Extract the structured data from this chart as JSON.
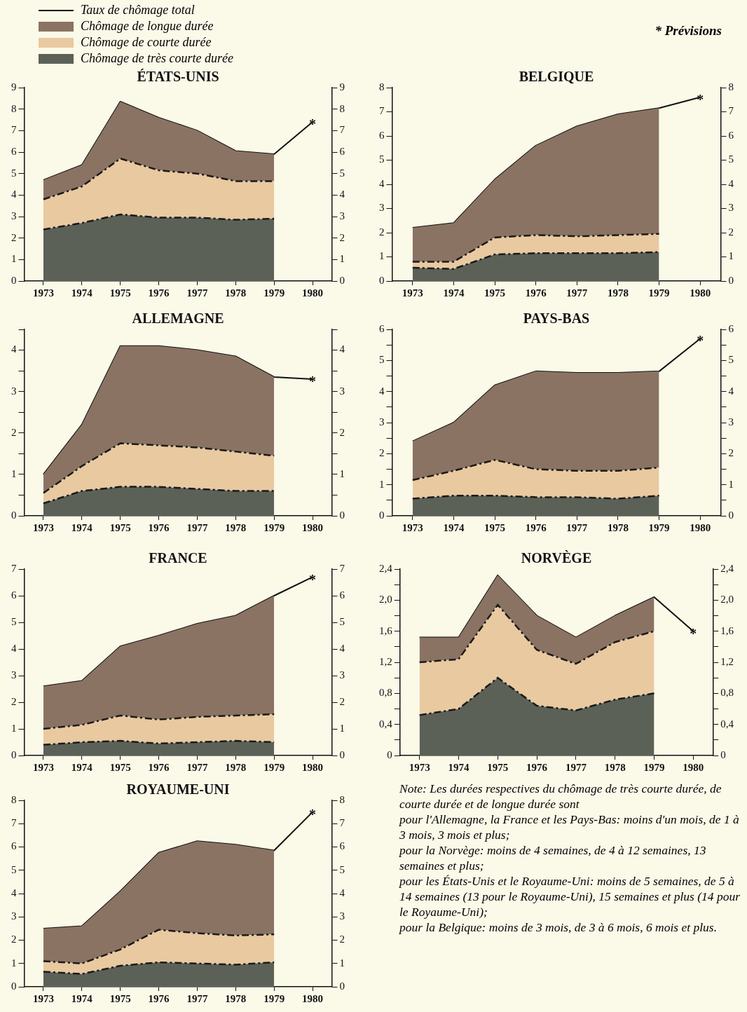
{
  "chart_data": [
    {
      "type": "area",
      "title": "ÉTATS-UNIS",
      "categories": [
        "1973",
        "1974",
        "1975",
        "1976",
        "1977",
        "1978",
        "1979",
        "1980"
      ],
      "stacked": true,
      "legend": "top left",
      "grid": false,
      "ylim": [
        0,
        9
      ],
      "yticks": [
        0,
        1,
        2,
        3,
        4,
        5,
        6,
        7,
        8,
        9
      ],
      "y2lim": [
        0,
        9
      ],
      "y2ticks": [
        0,
        1,
        2,
        3,
        4,
        5,
        6,
        7,
        8,
        9
      ],
      "series": [
        {
          "name": "Chômage de très courte durée",
          "type": "area",
          "color": "#5c6158",
          "line_style": "dashed",
          "values": [
            2.4,
            2.7,
            3.1,
            2.95,
            2.95,
            2.85,
            2.9,
            null
          ]
        },
        {
          "name": "Chômage de courte durée",
          "type": "area",
          "color": "#e9c9a0",
          "line_style": "dashed",
          "values": [
            1.4,
            1.7,
            2.6,
            2.2,
            2.05,
            1.8,
            1.75,
            null
          ]
        },
        {
          "name": "Chômage de longue durée",
          "type": "area",
          "color": "#8a7363",
          "values": [
            0.9,
            1.0,
            2.65,
            2.45,
            2.0,
            1.4,
            1.25,
            null
          ]
        },
        {
          "name": "Taux de chômage total",
          "type": "line",
          "color": "#111111",
          "marker": "none",
          "values": [
            4.7,
            5.4,
            8.35,
            7.6,
            7.0,
            6.05,
            5.9,
            7.4
          ]
        }
      ],
      "annotations": [
        {
          "text": "*",
          "x": "1980",
          "y": 7.4
        }
      ]
    },
    {
      "type": "area",
      "title": "BELGIQUE",
      "categories": [
        "1973",
        "1974",
        "1975",
        "1976",
        "1977",
        "1978",
        "1979",
        "1980"
      ],
      "stacked": true,
      "grid": false,
      "ylim": [
        0,
        8
      ],
      "yticks": [
        0,
        1,
        2,
        3,
        4,
        5,
        6,
        7,
        8
      ],
      "y2lim": [
        0,
        8
      ],
      "y2ticks": [
        0,
        1,
        2,
        3,
        4,
        5,
        6,
        7,
        8
      ],
      "series": [
        {
          "type": "area",
          "color": "#5c6158",
          "line_style": "dashed",
          "values": [
            0.55,
            0.5,
            1.1,
            1.15,
            1.15,
            1.15,
            1.2,
            null
          ]
        },
        {
          "type": "area",
          "color": "#e9c9a0",
          "line_style": "dashed",
          "values": [
            0.25,
            0.3,
            0.7,
            0.75,
            0.7,
            0.75,
            0.75,
            null
          ]
        },
        {
          "type": "area",
          "color": "#8a7363",
          "values": [
            1.4,
            1.6,
            2.4,
            3.7,
            4.55,
            5.0,
            5.2,
            null
          ]
        },
        {
          "type": "line",
          "color": "#111111",
          "marker": "none",
          "values": [
            2.2,
            2.4,
            4.2,
            5.6,
            6.4,
            6.9,
            7.15,
            7.6
          ]
        }
      ],
      "annotations": [
        "* Prévisions",
        {
          "text": "*",
          "x": "1980",
          "y": 7.6
        }
      ]
    },
    {
      "type": "area",
      "title": "ALLEMAGNE",
      "categories": [
        "1973",
        "1974",
        "1975",
        "1976",
        "1977",
        "1978",
        "1979",
        "1980"
      ],
      "stacked": true,
      "grid": false,
      "ylim": [
        0,
        4.5
      ],
      "yticks": [
        0,
        {
          "value": 0.5,
          "label": null
        },
        1,
        {
          "value": 1.5,
          "label": null
        },
        2,
        {
          "value": 2.5,
          "label": null
        },
        3,
        {
          "value": 3.5,
          "label": null
        },
        4,
        {
          "value": 4.5,
          "label": null
        }
      ],
      "y2lim": [
        0,
        4.5
      ],
      "y2ticks": [
        0,
        {
          "value": 0.5,
          "label": null
        },
        1,
        {
          "value": 1.5,
          "label": null
        },
        2,
        {
          "value": 2.5,
          "label": null
        },
        3,
        {
          "value": 3.5,
          "label": null
        },
        4,
        {
          "value": 4.5,
          "label": null
        }
      ],
      "series": [
        {
          "type": "area",
          "color": "#5c6158",
          "line_style": "dashed",
          "values": [
            0.3,
            0.6,
            0.7,
            0.7,
            0.65,
            0.6,
            0.6,
            null
          ]
        },
        {
          "type": "area",
          "color": "#e9c9a0",
          "line_style": "dashed",
          "values": [
            0.25,
            0.6,
            1.05,
            1.0,
            1.0,
            0.95,
            0.85,
            null
          ]
        },
        {
          "type": "area",
          "color": "#8a7363",
          "values": [
            0.45,
            1.0,
            2.35,
            2.4,
            2.35,
            2.3,
            1.9,
            null
          ]
        },
        {
          "type": "line",
          "color": "#111111",
          "marker": "none",
          "values": [
            1.0,
            2.2,
            4.1,
            4.1,
            4.0,
            3.85,
            3.35,
            3.3
          ]
        }
      ],
      "annotations": [
        {
          "text": "*",
          "x": "1980",
          "y": 3.3
        }
      ]
    },
    {
      "type": "area",
      "title": "PAYS-BAS",
      "categories": [
        "1973",
        "1974",
        "1975",
        "1976",
        "1977",
        "1978",
        "1979",
        "1980"
      ],
      "stacked": true,
      "grid": false,
      "ylim": [
        0,
        6
      ],
      "yticks": [
        0,
        {
          "value": 0.5,
          "label": null
        },
        1,
        {
          "value": 1.5,
          "label": null
        },
        2,
        {
          "value": 2.5,
          "label": null
        },
        3,
        {
          "value": 3.5,
          "label": null
        },
        4,
        {
          "value": 4.5,
          "label": null
        },
        5,
        {
          "value": 5.5,
          "label": null
        },
        6
      ],
      "y2lim": [
        0,
        6
      ],
      "y2ticks": [
        0,
        {
          "value": 0.5,
          "label": null
        },
        1,
        {
          "value": 1.5,
          "label": null
        },
        2,
        {
          "value": 2.5,
          "label": null
        },
        3,
        {
          "value": 3.5,
          "label": null
        },
        4,
        {
          "value": 4.5,
          "label": null
        },
        5,
        {
          "value": 5.5,
          "label": null
        },
        6
      ],
      "series": [
        {
          "type": "area",
          "color": "#5c6158",
          "line_style": "dashed",
          "values": [
            0.55,
            0.65,
            0.65,
            0.6,
            0.6,
            0.55,
            0.65,
            null
          ]
        },
        {
          "type": "area",
          "color": "#e9c9a0",
          "line_style": "dashed",
          "values": [
            0.6,
            0.8,
            1.15,
            0.9,
            0.85,
            0.9,
            0.9,
            null
          ]
        },
        {
          "type": "area",
          "color": "#8a7363",
          "values": [
            1.25,
            1.55,
            2.4,
            3.15,
            3.15,
            3.15,
            3.1,
            null
          ]
        },
        {
          "type": "line",
          "color": "#111111",
          "marker": "none",
          "values": [
            2.4,
            3.0,
            4.2,
            4.65,
            4.6,
            4.6,
            4.65,
            5.7
          ]
        }
      ],
      "annotations": [
        {
          "text": "*",
          "x": "1980",
          "y": 5.7
        }
      ]
    },
    {
      "type": "area",
      "title": "FRANCE",
      "categories": [
        "1973",
        "1974",
        "1975",
        "1976",
        "1977",
        "1978",
        "1979",
        "1980"
      ],
      "stacked": true,
      "grid": false,
      "ylim": [
        0,
        7
      ],
      "yticks": [
        0,
        1,
        2,
        3,
        4,
        5,
        6,
        7
      ],
      "y2lim": [
        0,
        7
      ],
      "y2ticks": [
        0,
        1,
        2,
        3,
        4,
        5,
        6,
        7
      ],
      "series": [
        {
          "type": "area",
          "color": "#5c6158",
          "line_style": "dashed",
          "values": [
            0.4,
            0.5,
            0.55,
            0.45,
            0.5,
            0.55,
            0.5,
            null
          ]
        },
        {
          "type": "area",
          "color": "#e9c9a0",
          "line_style": "dashed",
          "values": [
            0.6,
            0.65,
            0.95,
            0.9,
            0.95,
            0.95,
            1.05,
            null
          ]
        },
        {
          "type": "area",
          "color": "#8a7363",
          "values": [
            1.6,
            1.65,
            2.6,
            3.15,
            3.5,
            3.75,
            4.45,
            null
          ]
        },
        {
          "type": "line",
          "color": "#111111",
          "marker": "none",
          "values": [
            2.6,
            2.8,
            4.1,
            4.5,
            4.95,
            5.25,
            6.0,
            6.7
          ]
        }
      ],
      "annotations": [
        {
          "text": "*",
          "x": "1980",
          "y": 6.7
        }
      ]
    },
    {
      "type": "area",
      "title": "NORVÈGE",
      "categories": [
        "1973",
        "1974",
        "1975",
        "1976",
        "1977",
        "1978",
        "1979",
        "1980"
      ],
      "stacked": true,
      "grid": false,
      "ylim": [
        0,
        2.4
      ],
      "yticks": [
        0,
        {
          "value": 0.2,
          "label": null
        },
        {
          "value": 0.4,
          "label": "0,4"
        },
        {
          "value": 0.6,
          "label": null
        },
        {
          "value": 0.8,
          "label": "0,8"
        },
        {
          "value": 1.0,
          "label": null
        },
        {
          "value": 1.2,
          "label": "1,2"
        },
        {
          "value": 1.4,
          "label": null
        },
        {
          "value": 1.6,
          "label": "1,6"
        },
        {
          "value": 1.8,
          "label": null
        },
        {
          "value": 2.0,
          "label": "2,0"
        },
        {
          "value": 2.2,
          "label": null
        },
        {
          "value": 2.4,
          "label": "2,4"
        }
      ],
      "y2lim": [
        0,
        2.4
      ],
      "y2ticks": [
        0,
        {
          "value": 0.2,
          "label": null
        },
        {
          "value": 0.4,
          "label": "0,4"
        },
        {
          "value": 0.6,
          "label": null
        },
        {
          "value": 0.8,
          "label": "0,8"
        },
        {
          "value": 1.0,
          "label": null
        },
        {
          "value": 1.2,
          "label": "1,2"
        },
        {
          "value": 1.4,
          "label": null
        },
        {
          "value": 1.6,
          "label": "1,6"
        },
        {
          "value": 1.8,
          "label": null
        },
        {
          "value": 2.0,
          "label": "2,0"
        },
        {
          "value": 2.2,
          "label": null
        },
        {
          "value": 2.4,
          "label": "2,4"
        }
      ],
      "series": [
        {
          "type": "area",
          "color": "#5c6158",
          "line_style": "dashed",
          "values": [
            0.52,
            0.6,
            1.0,
            0.64,
            0.58,
            0.72,
            0.8,
            null
          ]
        },
        {
          "type": "area",
          "color": "#e9c9a0",
          "line_style": "dashed",
          "values": [
            0.68,
            0.64,
            0.94,
            0.72,
            0.6,
            0.74,
            0.8,
            null
          ]
        },
        {
          "type": "area",
          "color": "#8a7363",
          "values": [
            0.32,
            0.28,
            0.38,
            0.44,
            0.34,
            0.34,
            0.44,
            null
          ]
        },
        {
          "type": "line",
          "color": "#111111",
          "marker": "none",
          "values": [
            1.52,
            1.52,
            2.32,
            1.8,
            1.52,
            1.8,
            2.04,
            1.6
          ]
        }
      ],
      "annotations": [
        {
          "text": "*",
          "x": "1980",
          "y": 1.6
        },
        "Note: Les durées respectives du chômage de très courte durée, de courte durée et de longue durée sont",
        "pour l'Allemagne, la France et les Pays-Bas: moins d'un mois, de 1 à 3 mois, 3 mois et plus;",
        "pour la Norvège: moins de 4 semaines, de 4 à 12 semaines, 13 semaines et plus;",
        "pour les États-Unis et le Royaume-Uni: moins de 5 semaines, de 5 à 14 semaines (13 pour le Royaume-Uni), 15 semaines et plus (14 pour le Royaume-Uni);",
        "pour la Belgique: moins de 3 mois, de 3 à 6 mois, 6 mois et plus."
      ]
    },
    {
      "type": "area",
      "title": "ROYAUME-UNI",
      "categories": [
        "1973",
        "1974",
        "1975",
        "1976",
        "1977",
        "1978",
        "1979",
        "1980"
      ],
      "stacked": true,
      "grid": false,
      "ylim": [
        0,
        8
      ],
      "yticks": [
        0,
        1,
        2,
        3,
        4,
        5,
        6,
        7,
        8
      ],
      "y2lim": [
        0,
        8
      ],
      "y2ticks": [
        0,
        1,
        2,
        3,
        4,
        5,
        6,
        7,
        8
      ],
      "series": [
        {
          "type": "area",
          "color": "#5c6158",
          "line_style": "dashed",
          "values": [
            0.65,
            0.55,
            0.9,
            1.05,
            1.0,
            0.95,
            1.05,
            null
          ]
        },
        {
          "type": "area",
          "color": "#e9c9a0",
          "line_style": "dashed",
          "values": [
            0.45,
            0.45,
            0.7,
            1.4,
            1.3,
            1.25,
            1.2,
            null
          ]
        },
        {
          "type": "area",
          "color": "#8a7363",
          "values": [
            1.4,
            1.6,
            2.5,
            3.3,
            3.95,
            3.9,
            3.6,
            null
          ]
        },
        {
          "type": "line",
          "color": "#111111",
          "marker": "none",
          "values": [
            2.5,
            2.6,
            4.1,
            5.75,
            6.25,
            6.1,
            5.85,
            7.5
          ]
        }
      ],
      "annotations": [
        {
          "text": "*",
          "x": "1980",
          "y": 7.5
        }
      ]
    }
  ]
}
